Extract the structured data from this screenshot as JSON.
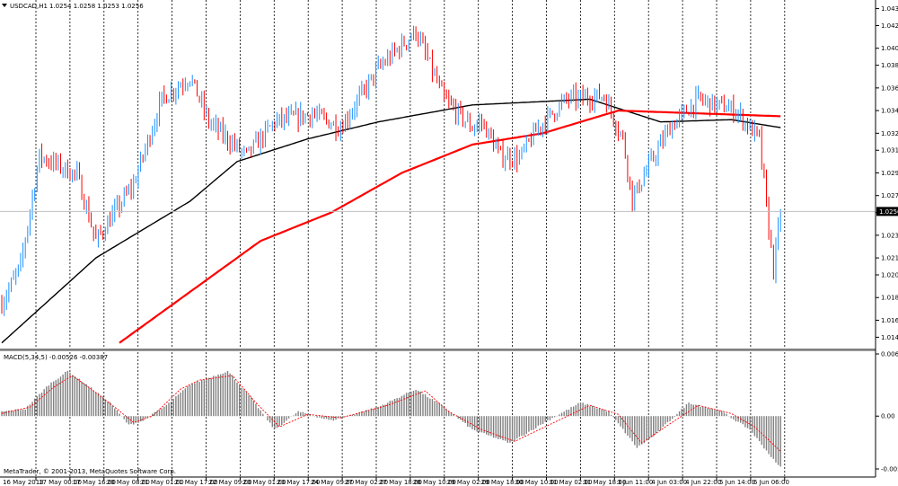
{
  "chart_header": {
    "symbol_title": "USDCAD,H1",
    "ohlc_text": "1.0254 1.0258 1.0253 1.0256"
  },
  "price_axis": {
    "labels": [
      "1.0435",
      "1.0420",
      "1.0400",
      "1.0385",
      "1.0365",
      "1.0345",
      "1.0325",
      "1.0310",
      "1.0290",
      "1.0270",
      "1.0255",
      "1.0235",
      "1.0215",
      "1.0200",
      "1.0180",
      "1.0160",
      "1.0145"
    ],
    "current_price_label": "1.0256"
  },
  "macd": {
    "title": "MACD(5,34,5) -0.00526 -0.00387",
    "axis_labels": [
      "0.0069",
      "0.00",
      "-0.00586"
    ]
  },
  "footer": {
    "copyright": "MetaTrader, © 2001-2013, MetaQuotes Software Corp."
  },
  "time_axis": {
    "labels": [
      "16 May 2013",
      "17 May 00:00",
      "17 May 16:00",
      "20 May 08:00",
      "21 May 01:00",
      "21 May 17:00",
      "22 May 09:00",
      "23 May 01:00",
      "23 May 17:00",
      "24 May 09:00",
      "27 May 02:00",
      "27 May 18:00",
      "28 May 10:00",
      "29 May 02:00",
      "29 May 18:00",
      "30 May 10:00",
      "31 May 02:00",
      "31 May 18:00",
      "3 Jun 11:00",
      "4 Jun 03:00",
      "4 Jun 22:00",
      "5 Jun 14:00",
      "6 Jun 06:00"
    ]
  },
  "colors": {
    "bull_candle": "#1e90ff",
    "bear_candle": "#ff0000",
    "ma_fast": "#000000",
    "ma_slow": "#ff0000",
    "macd_histogram": "#808080",
    "macd_signal": "#ff0000",
    "grid": "#000000"
  },
  "chart_data": [
    {
      "type": "candlestick",
      "title": "USDCAD,H1",
      "ylim": [
        1.0135,
        1.0441
      ],
      "key_closes": [
        [
          0,
          1.0175
        ],
        [
          8,
          1.0208
        ],
        [
          16,
          1.0305
        ],
        [
          32,
          1.0288
        ],
        [
          40,
          1.023
        ],
        [
          56,
          1.028
        ],
        [
          68,
          1.0355
        ],
        [
          80,
          1.0375
        ],
        [
          88,
          1.0335
        ],
        [
          104,
          1.0305
        ],
        [
          116,
          1.0335
        ],
        [
          132,
          1.0342
        ],
        [
          144,
          1.033
        ],
        [
          160,
          1.0382
        ],
        [
          176,
          1.0415
        ],
        [
          188,
          1.0355
        ],
        [
          200,
          1.033
        ],
        [
          204,
          1.0335
        ],
        [
          212,
          1.0305
        ],
        [
          220,
          1.0303
        ],
        [
          228,
          1.033
        ],
        [
          240,
          1.0355
        ],
        [
          256,
          1.0358
        ],
        [
          264,
          1.032
        ],
        [
          268,
          1.0267
        ],
        [
          276,
          1.03
        ],
        [
          284,
          1.033
        ],
        [
          296,
          1.0355
        ],
        [
          312,
          1.0345
        ],
        [
          322,
          1.032
        ],
        [
          326,
          1.024
        ],
        [
          328,
          1.0205
        ],
        [
          331,
          1.0255
        ]
      ],
      "current_price": 1.0256,
      "moving_averages": [
        {
          "color": "#000000",
          "points": [
            [
              0,
              1.014
            ],
            [
              40,
              1.0215
            ],
            [
              80,
              1.0265
            ],
            [
              100,
              1.03
            ],
            [
              130,
              1.032
            ],
            [
              160,
              1.0335
            ],
            [
              200,
              1.035
            ],
            [
              250,
              1.0355
            ],
            [
              280,
              1.0335
            ],
            [
              310,
              1.0337
            ],
            [
              331,
              1.033
            ]
          ]
        },
        {
          "color": "#ff0000",
          "points": [
            [
              50,
              1.014
            ],
            [
              80,
              1.0185
            ],
            [
              110,
              1.023
            ],
            [
              140,
              1.0255
            ],
            [
              170,
              1.029
            ],
            [
              200,
              1.0315
            ],
            [
              230,
              1.0325
            ],
            [
              262,
              1.0345
            ],
            [
              331,
              1.034
            ]
          ]
        }
      ]
    },
    {
      "type": "bar",
      "title": "MACD(5,34,5) -0.00526 -0.00387",
      "ylim": [
        -0.00586,
        0.0069
      ],
      "key_values": [
        [
          0,
          0.0005
        ],
        [
          10,
          0.0008
        ],
        [
          20,
          0.0035
        ],
        [
          28,
          0.005
        ],
        [
          36,
          0.0035
        ],
        [
          46,
          0.0015
        ],
        [
          54,
          -0.001
        ],
        [
          60,
          -0.0005
        ],
        [
          70,
          0.0012
        ],
        [
          80,
          0.0035
        ],
        [
          96,
          0.005
        ],
        [
          106,
          0.002
        ],
        [
          116,
          -0.0015
        ],
        [
          126,
          0.0005
        ],
        [
          140,
          -0.0005
        ],
        [
          160,
          0.001
        ],
        [
          176,
          0.003
        ],
        [
          188,
          0.001
        ],
        [
          200,
          -0.0015
        ],
        [
          216,
          -0.003
        ],
        [
          232,
          -0.0005
        ],
        [
          246,
          0.0015
        ],
        [
          258,
          0.0005
        ],
        [
          270,
          -0.0035
        ],
        [
          278,
          -0.002
        ],
        [
          292,
          0.0015
        ],
        [
          306,
          0.0005
        ],
        [
          318,
          -0.0015
        ],
        [
          330,
          -0.0055
        ]
      ],
      "signal_key_values": [
        [
          0,
          0.0003
        ],
        [
          12,
          0.001
        ],
        [
          22,
          0.0032
        ],
        [
          30,
          0.0045
        ],
        [
          38,
          0.003
        ],
        [
          48,
          0.001
        ],
        [
          56,
          -0.0007
        ],
        [
          64,
          0.0
        ],
        [
          76,
          0.003
        ],
        [
          84,
          0.004
        ],
        [
          98,
          0.0045
        ],
        [
          108,
          0.0015
        ],
        [
          118,
          -0.0012
        ],
        [
          130,
          0.0002
        ],
        [
          144,
          -0.0002
        ],
        [
          164,
          0.0012
        ],
        [
          180,
          0.0028
        ],
        [
          190,
          0.0005
        ],
        [
          204,
          -0.0015
        ],
        [
          218,
          -0.0028
        ],
        [
          234,
          -0.0008
        ],
        [
          250,
          0.0012
        ],
        [
          262,
          0.0002
        ],
        [
          272,
          -0.003
        ],
        [
          282,
          -0.0012
        ],
        [
          296,
          0.0012
        ],
        [
          310,
          0.0003
        ],
        [
          320,
          -0.0012
        ],
        [
          331,
          -0.0039
        ]
      ]
    }
  ]
}
